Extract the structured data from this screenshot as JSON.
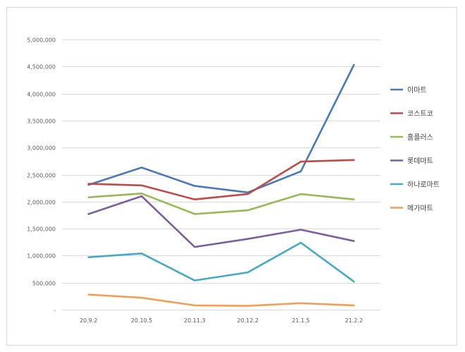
{
  "chart_data": {
    "type": "line",
    "title": "",
    "xlabel": "",
    "ylabel": "",
    "categories": [
      "20.9.2",
      "20.10.5",
      "20.11.3",
      "20.12.2",
      "21.1.5",
      "21.2.2"
    ],
    "ylim": [
      0,
      5000000
    ],
    "yticks": [
      0,
      500000,
      1000000,
      1500000,
      2000000,
      2500000,
      3000000,
      3500000,
      4000000,
      4500000,
      5000000
    ],
    "ytick_labels": [
      "-",
      "500,000",
      "1,000,000",
      "1,500,000",
      "2,000,000",
      "2,500,000",
      "3,000,000",
      "3,500,000",
      "4,000,000",
      "4,500,000",
      "5,000,000"
    ],
    "grid": true,
    "legend_position": "right",
    "series": [
      {
        "name": "이마트",
        "color": "#4a7ab5",
        "values": [
          2310000,
          2630000,
          2290000,
          2170000,
          2560000,
          4530000
        ]
      },
      {
        "name": "코스트코",
        "color": "#be4b48",
        "values": [
          2330000,
          2300000,
          2040000,
          2140000,
          2740000,
          2770000
        ]
      },
      {
        "name": "홈플러스",
        "color": "#98b954",
        "values": [
          2080000,
          2150000,
          1770000,
          1840000,
          2140000,
          2040000
        ]
      },
      {
        "name": "롯데마트",
        "color": "#7d5fa0",
        "values": [
          1770000,
          2100000,
          1160000,
          1310000,
          1480000,
          1270000
        ]
      },
      {
        "name": "하나로마트",
        "color": "#46aac5",
        "values": [
          970000,
          1040000,
          540000,
          690000,
          1240000,
          520000
        ]
      },
      {
        "name": "메가마트",
        "color": "#f59d56",
        "values": [
          280000,
          220000,
          80000,
          70000,
          120000,
          80000
        ]
      }
    ]
  }
}
